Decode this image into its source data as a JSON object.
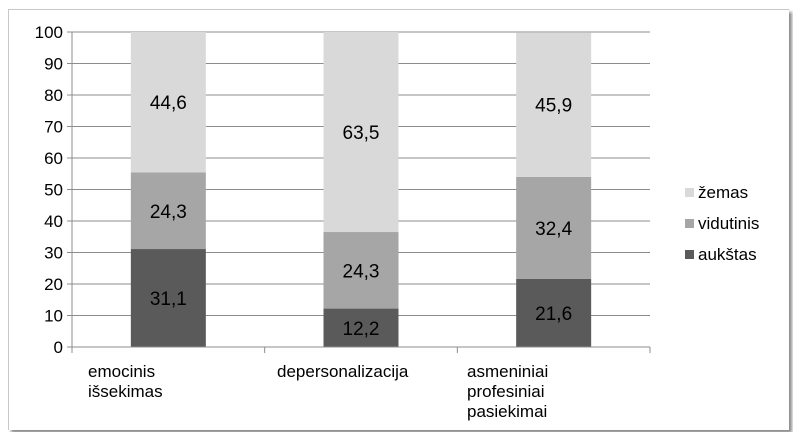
{
  "chart_data": {
    "type": "bar",
    "stacked": true,
    "title": "",
    "xlabel": "",
    "ylabel": "",
    "ylim": [
      0,
      100
    ],
    "yticks": [
      0,
      10,
      20,
      30,
      40,
      50,
      60,
      70,
      80,
      90,
      100
    ],
    "grid": true,
    "legend": "right",
    "categories": [
      [
        "emocinis",
        "išsekimas"
      ],
      [
        "depersonalizacija"
      ],
      [
        "asmeniniai",
        "profesiniai",
        "pasiekimai"
      ]
    ],
    "series": [
      {
        "name": "aukštas",
        "values": [
          31.1,
          12.2,
          21.6
        ],
        "labels": [
          "31,1",
          "12,2",
          "21,6"
        ],
        "color": "#5a5a5a"
      },
      {
        "name": "vidutinis",
        "values": [
          24.3,
          24.3,
          32.4
        ],
        "labels": [
          "24,3",
          "24,3",
          "32,4"
        ],
        "color": "#a6a6a6"
      },
      {
        "name": "žemas",
        "values": [
          44.6,
          63.5,
          45.9
        ],
        "labels": [
          "44,6",
          "63,5",
          "45,9"
        ],
        "color": "#d9d9d9"
      }
    ],
    "legend_order": [
      "žemas",
      "vidutinis",
      "aukštas"
    ]
  }
}
